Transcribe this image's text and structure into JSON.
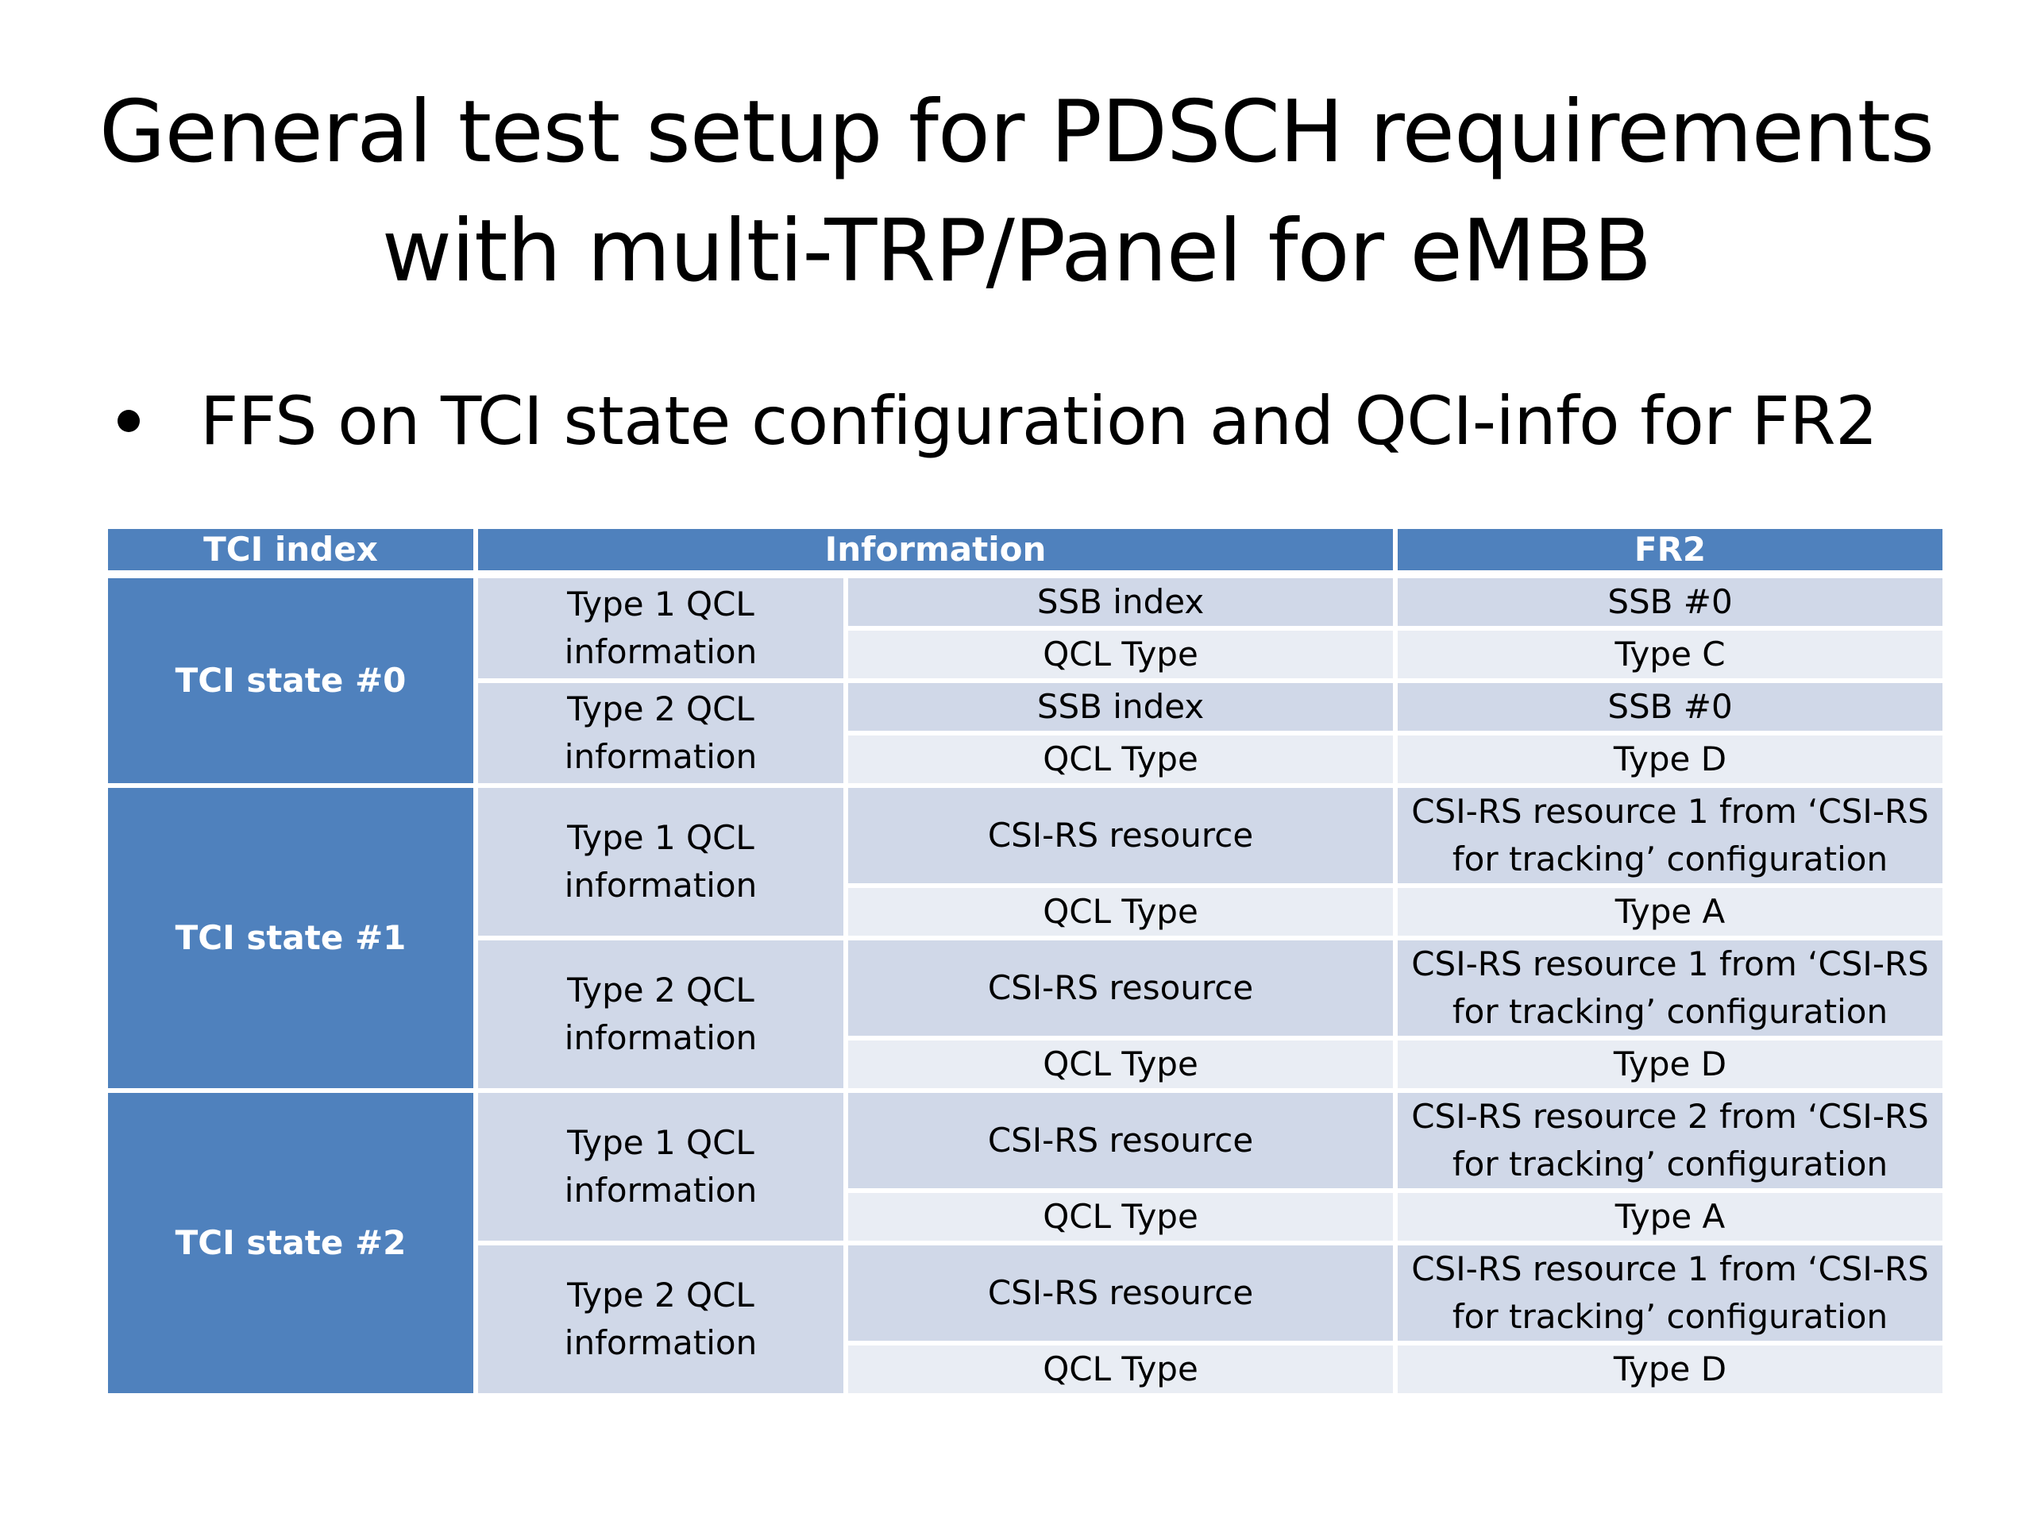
{
  "slide": {
    "title_line1": "General test setup for PDSCH requirements",
    "title_line2": "with multi-TRP/Panel for eMBB",
    "bullet": "FFS on TCI state configuration and QCI-info for FR2"
  },
  "table": {
    "headers": [
      "TCI index",
      "Information",
      "FR2"
    ],
    "states": [
      {
        "label": "TCI state #0",
        "groups": [
          {
            "info": "Type 1 QCL information",
            "rows": [
              {
                "param": "SSB index",
                "fr2": "SSB #0"
              },
              {
                "param": "QCL Type",
                "fr2": "Type C"
              }
            ]
          },
          {
            "info": "Type 2 QCL information",
            "rows": [
              {
                "param": "SSB index",
                "fr2": "SSB #0"
              },
              {
                "param": "QCL Type",
                "fr2": "Type D"
              }
            ]
          }
        ]
      },
      {
        "label": "TCI state #1",
        "groups": [
          {
            "info": "Type 1 QCL information",
            "rows": [
              {
                "param": "CSI-RS resource",
                "fr2": "CSI-RS resource 1 from ‘CSI-RS for tracking’ configuration"
              },
              {
                "param": "QCL Type",
                "fr2": "Type A"
              }
            ]
          },
          {
            "info": "Type 2 QCL information",
            "rows": [
              {
                "param": "CSI-RS resource",
                "fr2": "CSI-RS resource 1 from ‘CSI-RS for tracking’ configuration"
              },
              {
                "param": "QCL Type",
                "fr2": "Type D"
              }
            ]
          }
        ]
      },
      {
        "label": "TCI state #2",
        "groups": [
          {
            "info": "Type 1 QCL information",
            "rows": [
              {
                "param": "CSI-RS resource",
                "fr2": "CSI-RS resource 2 from ‘CSI-RS for tracking’ configuration"
              },
              {
                "param": "QCL Type",
                "fr2": "Type A"
              }
            ]
          },
          {
            "info": "Type 2 QCL information",
            "rows": [
              {
                "param": "CSI-RS resource",
                "fr2": "CSI-RS resource 1 from ‘CSI-RS for tracking’ configuration"
              },
              {
                "param": "QCL Type",
                "fr2": "Type D"
              }
            ]
          }
        ]
      }
    ]
  },
  "colors": {
    "header_bg": "#4f81bd",
    "dark_row": "#d0d8e8",
    "light_row": "#e9edf4"
  }
}
